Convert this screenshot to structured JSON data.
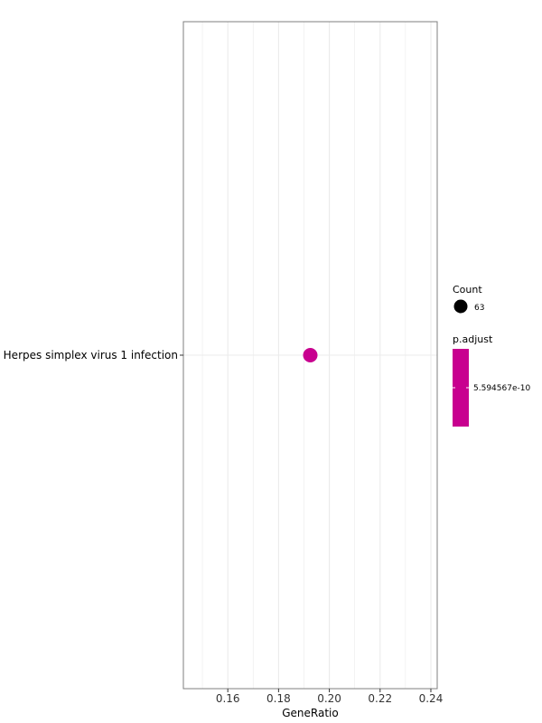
{
  "chart_data": {
    "type": "scatter",
    "title": "",
    "xlabel": "GeneRatio",
    "ylabel": "",
    "xlim": [
      0.1425,
      0.2425
    ],
    "x_ticks": [
      0.16,
      0.18,
      0.2,
      0.22,
      0.24
    ],
    "x_tick_labels": [
      "0.16",
      "0.18",
      "0.20",
      "0.22",
      "0.24"
    ],
    "categories": [
      "Herpes simplex virus 1 infection"
    ],
    "points": [
      {
        "category": "Herpes simplex virus 1 infection",
        "x": 0.1925,
        "count": 63,
        "p_adjust": 5.594567e-10
      }
    ],
    "grid": true,
    "legend_position": "right",
    "legend": {
      "count_title": "Count",
      "count_label": "63",
      "padjust_title": "p.adjust",
      "padjust_label": "5.594567e-10"
    },
    "colors": {
      "point": "#c8008f",
      "panel_border": "#7f7f7f",
      "grid": "#ebebeb"
    }
  }
}
